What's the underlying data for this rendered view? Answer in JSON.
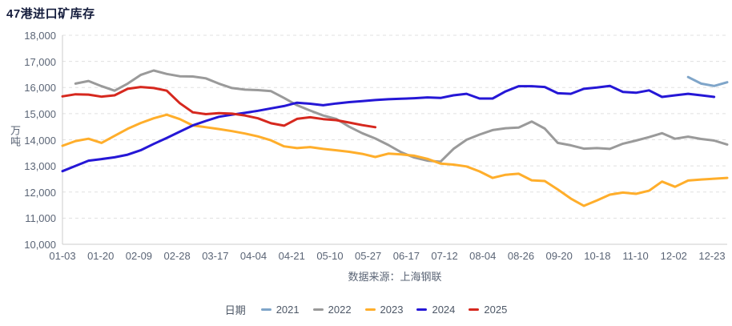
{
  "title": "47港进口矿库存",
  "source": "数据来源：上海钢联",
  "legend_label": "日期",
  "chart_data": {
    "type": "line",
    "title": "47港进口矿库存",
    "xlabel": "日期",
    "ylabel": "万吨",
    "ylim": [
      10000,
      18000
    ],
    "y_tick_step": 1000,
    "y_tick_labels": [
      "18,000",
      "17,000",
      "16,000",
      "15,000",
      "14,000",
      "13,000",
      "12,000",
      "11,000",
      "10,000"
    ],
    "x_tick_labels": [
      "01-03",
      "01-20",
      "02-09",
      "02-28",
      "03-17",
      "04-04",
      "04-21",
      "05-10",
      "05-27",
      "06-17",
      "07-12",
      "08-04",
      "08-26",
      "09-20",
      "10-18",
      "11-10",
      "12-02",
      "12-23"
    ],
    "grid": "horizontal-dashed",
    "legend_position": "bottom",
    "axis_color": "#cccccc",
    "grid_color": "#e0e0e0",
    "series": [
      {
        "name": "2021",
        "color": "#7fa5c9",
        "values": [
          null,
          null,
          null,
          null,
          null,
          null,
          null,
          null,
          null,
          null,
          null,
          null,
          null,
          null,
          null,
          null,
          null,
          null,
          null,
          null,
          null,
          null,
          null,
          null,
          null,
          null,
          null,
          null,
          null,
          null,
          null,
          null,
          null,
          null,
          null,
          null,
          null,
          null,
          null,
          null,
          null,
          null,
          null,
          null,
          null,
          null,
          null,
          null,
          16400,
          16150,
          16060,
          16200
        ]
      },
      {
        "name": "2022",
        "color": "#9a9a9a",
        "values": [
          null,
          16150,
          16250,
          16050,
          15880,
          16150,
          16480,
          16650,
          16520,
          16430,
          16420,
          16350,
          16150,
          15980,
          15920,
          15900,
          15860,
          15600,
          15320,
          15120,
          14930,
          14800,
          14500,
          14250,
          14050,
          13800,
          13520,
          13320,
          13200,
          13160,
          13650,
          14000,
          14200,
          14370,
          14440,
          14470,
          14700,
          14430,
          13880,
          13790,
          13660,
          13680,
          13650,
          13850,
          13970,
          14100,
          14250,
          14040,
          14120,
          14030,
          13970,
          13820
        ]
      },
      {
        "name": "2023",
        "color": "#ffae2b",
        "values": [
          13770,
          13950,
          14040,
          13880,
          14150,
          14420,
          14640,
          14820,
          14960,
          14790,
          14550,
          14480,
          14410,
          14330,
          14240,
          14130,
          13980,
          13750,
          13680,
          13720,
          13650,
          13600,
          13540,
          13460,
          13340,
          13470,
          13440,
          13390,
          13270,
          13090,
          13050,
          12980,
          12790,
          12540,
          12660,
          12700,
          12450,
          12420,
          12100,
          11750,
          11470,
          11680,
          11900,
          11980,
          11930,
          12050,
          12400,
          12200,
          12440,
          12480,
          12510,
          12540
        ]
      },
      {
        "name": "2024",
        "color": "#2517d6",
        "values": [
          12800,
          13000,
          13200,
          13260,
          13330,
          13430,
          13600,
          13840,
          14070,
          14310,
          14550,
          14720,
          14880,
          14960,
          15030,
          15110,
          15200,
          15290,
          15420,
          15380,
          15320,
          15390,
          15440,
          15480,
          15520,
          15550,
          15570,
          15590,
          15620,
          15600,
          15700,
          15760,
          15580,
          15580,
          15850,
          16050,
          16050,
          16020,
          15780,
          15760,
          15950,
          16000,
          16060,
          15830,
          15800,
          15890,
          15640,
          15700,
          15760,
          15700,
          15640,
          null
        ]
      },
      {
        "name": "2025",
        "color": "#d6281e",
        "values": [
          15660,
          15740,
          15730,
          15650,
          15700,
          15950,
          16020,
          15980,
          15880,
          15400,
          15050,
          14980,
          15020,
          15000,
          14930,
          14820,
          14630,
          14540,
          14800,
          14860,
          14790,
          14750,
          14660,
          14560,
          14480,
          null,
          null,
          null,
          null,
          null,
          null,
          null,
          null,
          null,
          null,
          null,
          null,
          null,
          null,
          null,
          null,
          null,
          null,
          null,
          null,
          null,
          null,
          null,
          null,
          null,
          null,
          null
        ]
      }
    ]
  }
}
